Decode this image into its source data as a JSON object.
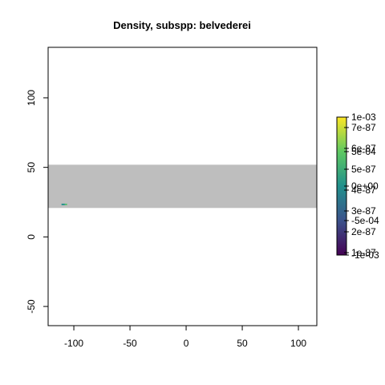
{
  "chart_data": {
    "type": "raster",
    "title": "Density, subspp: belvederei",
    "xlim": [
      -122.9,
      116.4
    ],
    "xticks": [
      -100,
      -50,
      0,
      50,
      100
    ],
    "ylim": [
      -63.8,
      136.3
    ],
    "yticks": [
      -50,
      0,
      50,
      100
    ],
    "band": {
      "xmin": -122.9,
      "xmax": 116.4,
      "ymin": 20.8,
      "ymax": 51.9,
      "color": "#bebebe"
    },
    "cells": [
      {
        "xmin": -111,
        "xmax": -108,
        "ymin": 22.8,
        "ymax": 23.9,
        "value": 0
      },
      {
        "xmin": -108,
        "xmax": -106,
        "ymin": 22.8,
        "ymax": 23.9,
        "value": 0.0004
      }
    ],
    "zlim": [
      -0.001,
      0.001
    ],
    "zticks": [
      {
        "value": -0.001,
        "label": "-1e-03"
      },
      {
        "value": -0.0005,
        "label": "-5e-04"
      },
      {
        "value": 0,
        "label": "0e+00"
      },
      {
        "value": 0.0005,
        "label": "5e-04"
      },
      {
        "value": 0.001,
        "label": "1e-03"
      }
    ],
    "z2lim": [
      8.85e-88,
      7.5e-87
    ],
    "z2ticks": [
      {
        "value": 1e-87,
        "label": "1e-87"
      },
      {
        "value": 2e-87,
        "label": "2e-87"
      },
      {
        "value": 3e-87,
        "label": "3e-87"
      },
      {
        "value": 4e-87,
        "label": "4e-87"
      },
      {
        "value": 5e-87,
        "label": "5e-87"
      },
      {
        "value": 6e-87,
        "label": "6e-87"
      },
      {
        "value": 7e-87,
        "label": "7e-87"
      }
    ]
  }
}
